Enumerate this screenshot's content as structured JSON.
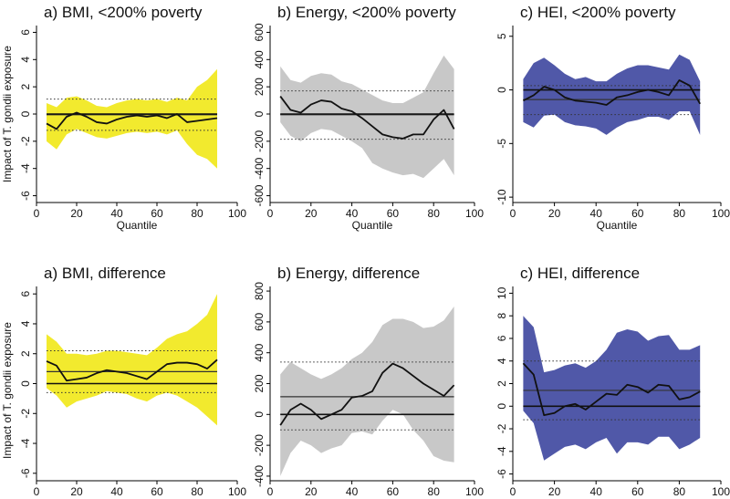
{
  "figure": {
    "ylabel_left": "Impact of T. gondii exposure"
  },
  "chart_data": [
    {
      "type": "line",
      "title": "a) BMI, <200% poverty",
      "xlabel": "Quantile",
      "ylabel": "Impact of T. gondii exposure",
      "xlim": [
        0,
        100
      ],
      "ylim": [
        -6.5,
        6.5
      ],
      "xticks": [
        0,
        20,
        40,
        60,
        80,
        100
      ],
      "yticks": [
        -6,
        -4,
        -2,
        0,
        2,
        4,
        6
      ],
      "band_color": "#f2ea2e",
      "x": [
        5,
        10,
        15,
        20,
        25,
        30,
        35,
        40,
        45,
        50,
        55,
        60,
        65,
        70,
        75,
        80,
        85,
        90
      ],
      "estimate": [
        -0.7,
        -1.1,
        -0.2,
        0.1,
        -0.2,
        -0.6,
        -0.7,
        -0.4,
        -0.2,
        -0.1,
        -0.2,
        -0.1,
        -0.3,
        0.0,
        -0.6,
        -0.5,
        -0.4,
        -0.3
      ],
      "ci_upper": [
        0.8,
        0.5,
        1.2,
        1.3,
        1.0,
        0.6,
        0.5,
        0.8,
        1.0,
        1.1,
        1.0,
        1.1,
        0.9,
        1.2,
        1.0,
        2.0,
        2.5,
        3.3
      ],
      "ci_lower": [
        -2.0,
        -2.6,
        -1.5,
        -1.1,
        -1.4,
        -1.7,
        -1.8,
        -1.6,
        -1.4,
        -1.3,
        -1.4,
        -1.3,
        -1.5,
        -1.2,
        -2.2,
        -3.0,
        -3.3,
        -4.0
      ],
      "ols_estimate": -0.05,
      "ols_ci": [
        -1.2,
        1.1
      ]
    },
    {
      "type": "line",
      "title": "b) Energy, <200% poverty",
      "xlabel": "Quantile",
      "ylabel": "",
      "xlim": [
        0,
        100
      ],
      "ylim": [
        -650,
        650
      ],
      "xticks": [
        0,
        20,
        40,
        60,
        80,
        100
      ],
      "yticks": [
        -600,
        -400,
        -200,
        0,
        200,
        400,
        600
      ],
      "band_color": "#c8c8c8",
      "x": [
        5,
        10,
        15,
        20,
        25,
        30,
        35,
        40,
        45,
        50,
        55,
        60,
        65,
        70,
        75,
        80,
        85,
        90
      ],
      "estimate": [
        130,
        30,
        10,
        70,
        100,
        90,
        40,
        20,
        -30,
        -90,
        -150,
        -170,
        -180,
        -150,
        -150,
        -40,
        30,
        -110
      ],
      "ci_upper": [
        350,
        250,
        230,
        280,
        300,
        290,
        240,
        220,
        180,
        140,
        100,
        80,
        80,
        120,
        160,
        300,
        430,
        330
      ],
      "ci_lower": [
        -60,
        -160,
        -200,
        -140,
        -110,
        -120,
        -160,
        -200,
        -250,
        -360,
        -400,
        -430,
        -450,
        -440,
        -470,
        -400,
        -330,
        -450
      ],
      "ols_estimate": -5,
      "ols_ci": [
        -185,
        170
      ]
    },
    {
      "type": "line",
      "title": "c) HEI, <200% poverty",
      "xlabel": "Quantile",
      "ylabel": "",
      "xlim": [
        0,
        100
      ],
      "ylim": [
        -10.5,
        6
      ],
      "xticks": [
        0,
        20,
        40,
        60,
        80,
        100
      ],
      "yticks": [
        -10,
        -5,
        0,
        5
      ],
      "band_color": "#5058a8",
      "x": [
        5,
        10,
        15,
        20,
        25,
        30,
        35,
        40,
        45,
        50,
        55,
        60,
        65,
        70,
        75,
        80,
        85,
        90
      ],
      "estimate": [
        -1.0,
        -0.5,
        0.3,
        0.0,
        -0.7,
        -1.0,
        -1.1,
        -1.2,
        -1.4,
        -0.7,
        -0.5,
        -0.2,
        0.0,
        -0.2,
        -0.5,
        0.9,
        0.4,
        -1.3
      ],
      "ci_upper": [
        1.0,
        2.5,
        3.0,
        2.3,
        1.5,
        1.0,
        1.2,
        0.8,
        0.8,
        1.5,
        2.0,
        2.3,
        2.3,
        2.1,
        1.9,
        3.3,
        2.8,
        0.8
      ],
      "ci_lower": [
        -3.0,
        -3.5,
        -2.4,
        -2.3,
        -3.0,
        -3.3,
        -3.4,
        -3.6,
        -4.2,
        -3.5,
        -3.0,
        -2.8,
        -2.5,
        -2.5,
        -2.8,
        -2.0,
        -2.0,
        -4.2
      ],
      "ols_estimate": -0.9,
      "ols_ci": [
        -2.3,
        0.4
      ]
    },
    {
      "type": "line",
      "title": "a) BMI, difference",
      "xlabel": "Quantile",
      "ylabel": "Impact of T. gondii exposure",
      "xlim": [
        0,
        100
      ],
      "ylim": [
        -6.5,
        6.5
      ],
      "xticks": [
        0,
        20,
        40,
        60,
        80,
        100
      ],
      "yticks": [
        -6,
        -4,
        -2,
        0,
        2,
        4,
        6
      ],
      "band_color": "#f2ea2e",
      "x": [
        5,
        10,
        15,
        20,
        25,
        30,
        35,
        40,
        45,
        50,
        55,
        60,
        65,
        70,
        75,
        80,
        85,
        90
      ],
      "estimate": [
        1.5,
        1.2,
        0.2,
        0.3,
        0.4,
        0.7,
        0.9,
        0.8,
        0.7,
        0.5,
        0.3,
        0.8,
        1.3,
        1.4,
        1.4,
        1.3,
        1.0,
        1.6
      ],
      "ci_upper": [
        3.3,
        2.8,
        2.0,
        2.0,
        1.9,
        2.0,
        2.2,
        2.2,
        2.1,
        2.0,
        1.9,
        2.4,
        3.0,
        3.3,
        3.5,
        4.0,
        4.6,
        6.0
      ],
      "ci_lower": [
        -0.3,
        -0.8,
        -1.6,
        -1.2,
        -1.0,
        -0.8,
        -0.5,
        -0.6,
        -0.7,
        -1.0,
        -1.2,
        -0.8,
        -0.6,
        -0.8,
        -1.2,
        -1.6,
        -2.2,
        -2.8
      ],
      "ols_estimate": 0.8,
      "ols_ci": [
        -0.6,
        2.2
      ]
    },
    {
      "type": "line",
      "title": "b) Energy, difference",
      "xlabel": "Quantile",
      "ylabel": "",
      "xlim": [
        0,
        100
      ],
      "ylim": [
        -430,
        830
      ],
      "xticks": [
        0,
        20,
        40,
        60,
        80,
        100
      ],
      "yticks": [
        -400,
        -200,
        0,
        200,
        400,
        600,
        800
      ],
      "band_color": "#c8c8c8",
      "x": [
        5,
        10,
        15,
        20,
        25,
        30,
        35,
        40,
        45,
        50,
        55,
        60,
        65,
        70,
        75,
        80,
        85,
        90
      ],
      "estimate": [
        -70,
        30,
        70,
        30,
        -30,
        0,
        30,
        110,
        120,
        150,
        270,
        330,
        300,
        250,
        200,
        160,
        120,
        190
      ],
      "ci_upper": [
        260,
        340,
        300,
        260,
        230,
        260,
        300,
        360,
        400,
        470,
        580,
        620,
        620,
        600,
        560,
        570,
        610,
        700
      ],
      "ci_lower": [
        -400,
        -250,
        -170,
        -200,
        -250,
        -220,
        -200,
        -120,
        -110,
        -130,
        -40,
        30,
        0,
        -100,
        -170,
        -270,
        -300,
        -310
      ],
      "ols_estimate": 115,
      "ols_ci": [
        -100,
        340
      ]
    },
    {
      "type": "line",
      "title": "c) HEI, difference",
      "xlabel": "Quantile",
      "ylabel": "",
      "xlim": [
        0,
        100
      ],
      "ylim": [
        -6.6,
        10.6
      ],
      "xticks": [
        0,
        20,
        40,
        60,
        80,
        100
      ],
      "yticks": [
        -6,
        -4,
        -2,
        0,
        2,
        4,
        6,
        8,
        10
      ],
      "band_color": "#5058a8",
      "x": [
        5,
        10,
        15,
        20,
        25,
        30,
        35,
        40,
        45,
        50,
        55,
        60,
        65,
        70,
        75,
        80,
        85,
        90
      ],
      "estimate": [
        3.8,
        2.8,
        -0.8,
        -0.6,
        0.0,
        0.2,
        -0.3,
        0.4,
        1.1,
        1.0,
        1.9,
        1.7,
        1.2,
        1.9,
        1.8,
        0.6,
        0.8,
        1.3
      ],
      "ci_upper": [
        8.0,
        7.0,
        3.0,
        3.2,
        3.6,
        3.8,
        3.4,
        4.0,
        5.0,
        6.5,
        6.8,
        6.6,
        5.8,
        6.2,
        6.3,
        5.0,
        5.0,
        5.4
      ],
      "ci_lower": [
        -0.4,
        -1.5,
        -4.8,
        -4.2,
        -3.6,
        -3.4,
        -3.8,
        -3.2,
        -2.8,
        -4.2,
        -3.2,
        -3.2,
        -3.4,
        -2.7,
        -2.7,
        -3.8,
        -3.4,
        -2.8
      ],
      "ols_estimate": 1.4,
      "ols_ci": [
        -1.2,
        4.0
      ]
    }
  ]
}
